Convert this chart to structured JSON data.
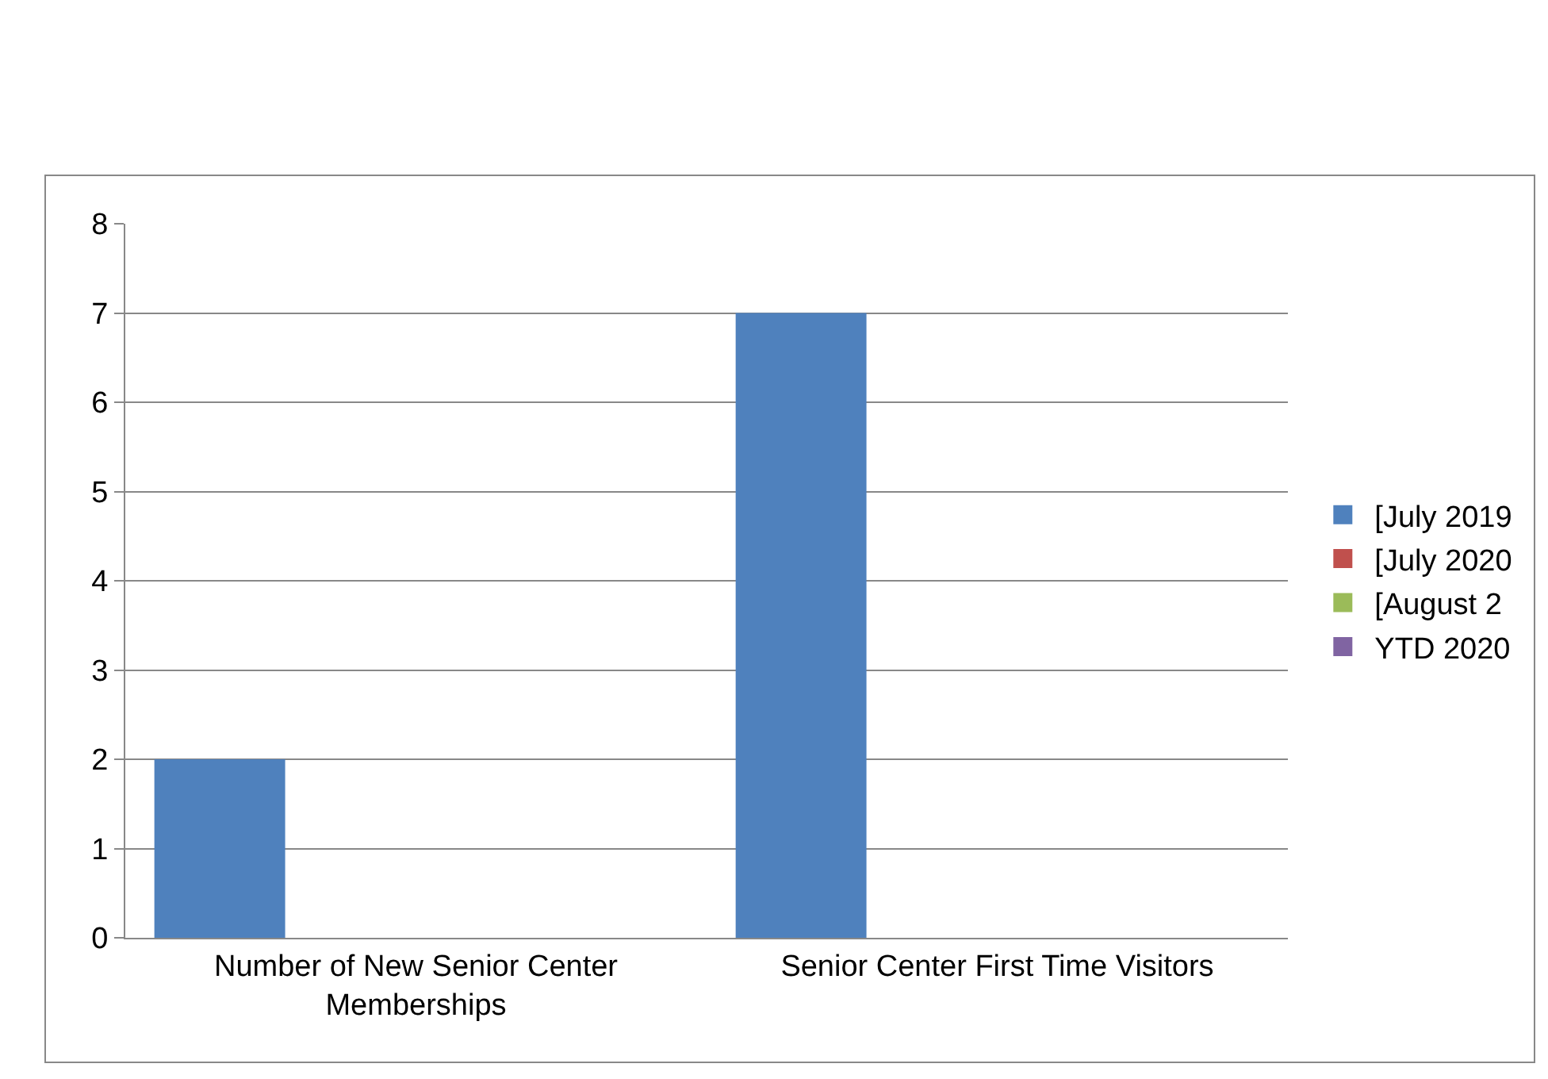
{
  "chart_data": {
    "type": "bar",
    "categories": [
      "Number of New Senior Center Memberships",
      "Senior Center First Time Visitors"
    ],
    "series": [
      {
        "name": "[July 2019",
        "color": "#4f81bd",
        "values": [
          2,
          7
        ]
      },
      {
        "name": "[July 2020",
        "color": "#c0504d",
        "values": [
          0,
          0
        ]
      },
      {
        "name": "[August 2",
        "color": "#9bbb59",
        "values": [
          0,
          0
        ]
      },
      {
        "name": "YTD 2020",
        "color": "#8064a2",
        "values": [
          0,
          0
        ]
      }
    ],
    "ylim": [
      0,
      8
    ],
    "yticks": [
      0,
      1,
      2,
      3,
      4,
      5,
      6,
      7,
      8
    ],
    "grid": "y",
    "legend": "right"
  }
}
